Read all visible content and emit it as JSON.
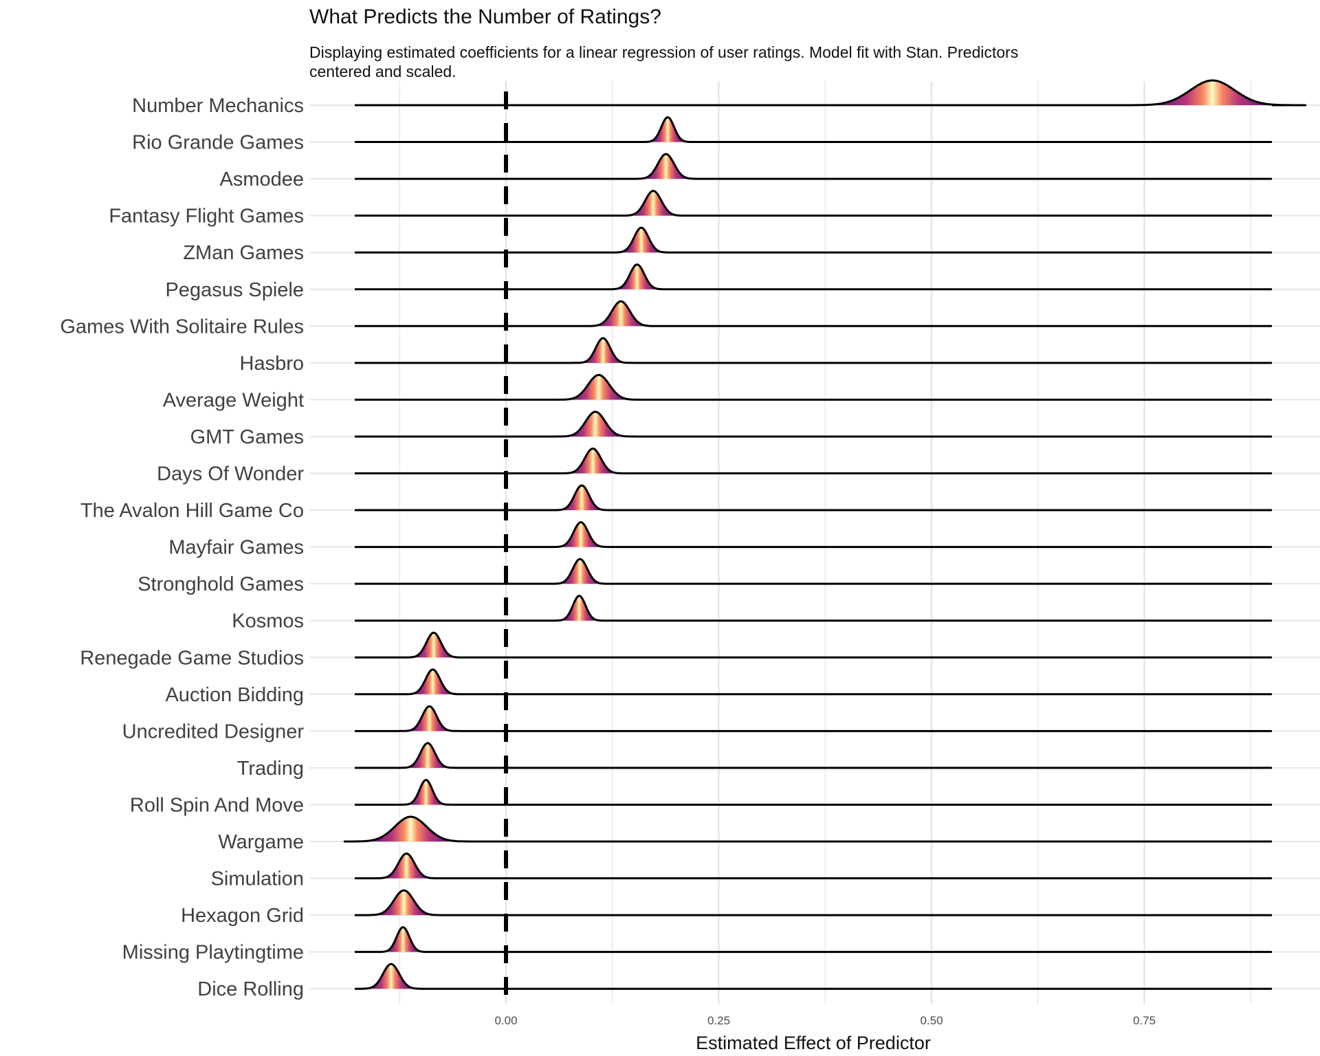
{
  "chart_data": {
    "type": "ridgeline",
    "title": "What Predicts the Number of Ratings?",
    "subtitle": "Displaying estimated coefficients for a linear regression of user ratings. Model fit with Stan. Predictors centered and scaled.",
    "xlabel": "Estimated Effect of Predictor",
    "ylabel": "",
    "xlim": [
      -0.185,
      0.925
    ],
    "x_ticks": [
      0.0,
      0.25,
      0.5,
      0.75
    ],
    "x_tick_labels": [
      "0.00",
      "0.25",
      "0.50",
      "0.75"
    ],
    "reference_line": {
      "x": 0.0,
      "style": "dashed"
    },
    "grid": true,
    "legend": "none",
    "fill_palette": [
      "#000004",
      "#51127c",
      "#b73779",
      "#fc8961",
      "#fcfdbf"
    ],
    "categories": [
      "Number Mechanics",
      "Rio Grande Games",
      "Asmodee",
      "Fantasy Flight Games",
      "ZMan Games",
      "Pegasus Spiele",
      "Games With Solitaire Rules",
      "Hasbro",
      "Average Weight",
      "GMT Games",
      "Days Of Wonder",
      "The Avalon Hill Game Co",
      "Mayfair Games",
      "Stronghold Games",
      "Kosmos",
      "Renegade Game Studios",
      "Auction Bidding",
      "Uncredited Designer",
      "Trading",
      "Roll Spin And Move",
      "Wargame",
      "Simulation",
      "Hexagon Grid",
      "Missing Playtingtime",
      "Dice Rolling"
    ],
    "means": [
      0.83,
      0.19,
      0.188,
      0.173,
      0.159,
      0.154,
      0.135,
      0.114,
      0.109,
      0.105,
      0.102,
      0.089,
      0.088,
      0.087,
      0.086,
      -0.085,
      -0.086,
      -0.09,
      -0.092,
      -0.094,
      -0.112,
      -0.117,
      -0.12,
      -0.121,
      -0.135
    ],
    "sds": [
      0.026,
      0.0075,
      0.0095,
      0.0095,
      0.0085,
      0.0085,
      0.0105,
      0.0085,
      0.0125,
      0.0115,
      0.0095,
      0.0085,
      0.0085,
      0.0085,
      0.0075,
      0.0085,
      0.0085,
      0.0085,
      0.0085,
      0.0075,
      0.0185,
      0.0095,
      0.0115,
      0.0075,
      0.0095
    ]
  }
}
